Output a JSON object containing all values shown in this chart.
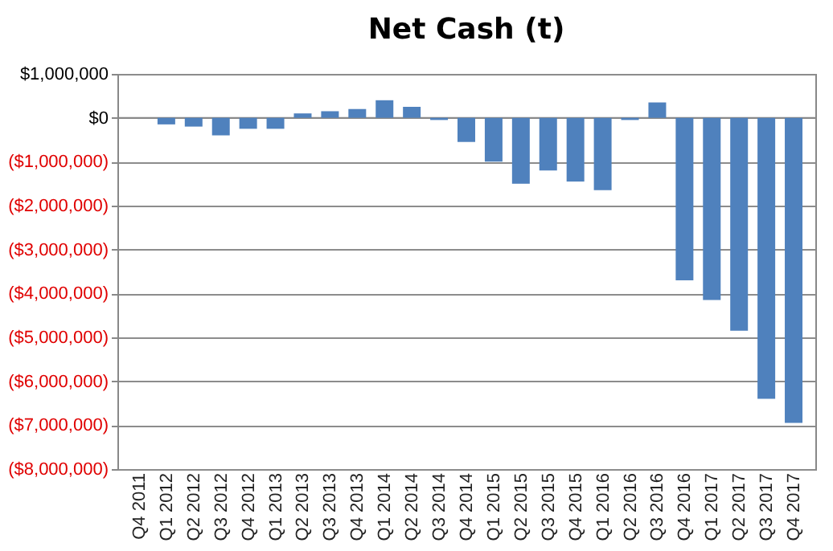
{
  "chart_data": {
    "type": "bar",
    "title": "Net Cash (t)",
    "categories": [
      "Q4 2011",
      "Q1 2012",
      "Q2 2012",
      "Q3 2012",
      "Q4 2012",
      "Q1 2013",
      "Q2 2013",
      "Q3 2013",
      "Q4 2013",
      "Q1 2014",
      "Q2 2014",
      "Q3 2014",
      "Q4 2014",
      "Q1 2015",
      "Q2 2015",
      "Q3 2015",
      "Q4 2015",
      "Q1 2016",
      "Q2 2016",
      "Q3 2016",
      "Q4 2016",
      "Q1 2017",
      "Q2 2017",
      "Q3 2017",
      "Q4 2017"
    ],
    "values": [
      0,
      -150000,
      -200000,
      -400000,
      -250000,
      -250000,
      100000,
      150000,
      200000,
      400000,
      250000,
      -50000,
      -550000,
      -1000000,
      -1500000,
      -1200000,
      -1450000,
      -1650000,
      -50000,
      350000,
      -3700000,
      -4150000,
      -4850000,
      -6400000,
      -6950000
    ],
    "color": "#4f81bd",
    "ylim": [
      -8000000,
      1000000
    ],
    "yticks": [
      {
        "value": 1000000,
        "label": "$1,000,000"
      },
      {
        "value": 0,
        "label": "$0"
      },
      {
        "value": -1000000,
        "label": "($1,000,000)"
      },
      {
        "value": -2000000,
        "label": "($2,000,000)"
      },
      {
        "value": -3000000,
        "label": "($3,000,000)"
      },
      {
        "value": -4000000,
        "label": "($4,000,000)"
      },
      {
        "value": -5000000,
        "label": "($5,000,000)"
      },
      {
        "value": -6000000,
        "label": "($6,000,000)"
      },
      {
        "value": -7000000,
        "label": "($7,000,000)"
      },
      {
        "value": -8000000,
        "label": "($8,000,000)"
      }
    ],
    "grid": "y"
  }
}
